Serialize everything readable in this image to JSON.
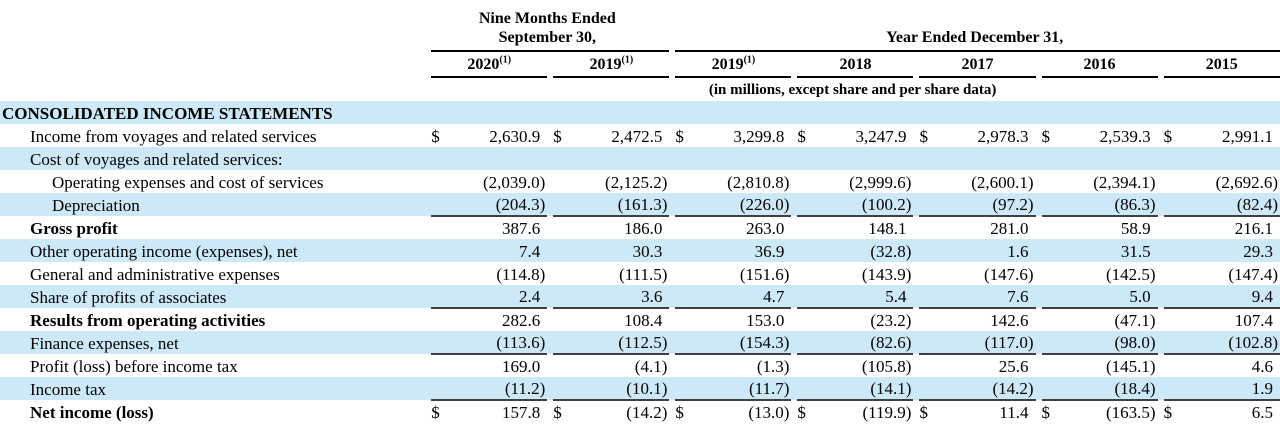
{
  "currency_symbol": "$",
  "colors": {
    "row_stripe": "#cde9f7"
  },
  "header": {
    "nine_months_line1": "Nine Months Ended",
    "nine_months_line2": "September 30,",
    "year_ended": "Year Ended December 31,",
    "units_note": "(in millions, except share and per share data)",
    "columns": [
      {
        "label": "2020",
        "sup": "(1)"
      },
      {
        "label": "2019",
        "sup": "(1)"
      },
      {
        "label": "2019",
        "sup": "(1)"
      },
      {
        "label": "2018",
        "sup": ""
      },
      {
        "label": "2017",
        "sup": ""
      },
      {
        "label": "2016",
        "sup": ""
      },
      {
        "label": "2015",
        "sup": ""
      }
    ]
  },
  "section_title": "CONSOLIDATED INCOME STATEMENTS",
  "rows": [
    {
      "label": "Income from voyages and related services",
      "indent": 1,
      "bold": false,
      "shade": false,
      "rule": false,
      "dollar": true,
      "values": [
        "2,630.9",
        "2,472.5",
        "3,299.8",
        "3,247.9",
        "2,978.3",
        "2,539.3",
        "2,991.1"
      ]
    },
    {
      "label": "Cost of voyages and related services:",
      "indent": 1,
      "bold": false,
      "shade": true,
      "rule": false,
      "dollar": false,
      "values": [
        "",
        "",
        "",
        "",
        "",
        "",
        ""
      ]
    },
    {
      "label": "Operating expenses and cost of services",
      "indent": 2,
      "bold": false,
      "shade": false,
      "rule": false,
      "dollar": false,
      "values": [
        "(2,039.0)",
        "(2,125.2)",
        "(2,810.8)",
        "(2,999.6)",
        "(2,600.1)",
        "(2,394.1)",
        "(2,692.6)"
      ]
    },
    {
      "label": "Depreciation",
      "indent": 2,
      "bold": false,
      "shade": true,
      "rule": true,
      "dollar": false,
      "values": [
        "(204.3)",
        "(161.3)",
        "(226.0)",
        "(100.2)",
        "(97.2)",
        "(86.3)",
        "(82.4)"
      ]
    },
    {
      "label": "Gross profit",
      "indent": 1,
      "bold": true,
      "shade": false,
      "rule": false,
      "dollar": false,
      "values": [
        "387.6",
        "186.0",
        "263.0",
        "148.1",
        "281.0",
        "58.9",
        "216.1"
      ]
    },
    {
      "label": "Other operating income (expenses), net",
      "indent": 1,
      "bold": false,
      "shade": true,
      "rule": false,
      "dollar": false,
      "values": [
        "7.4",
        "30.3",
        "36.9",
        "(32.8)",
        "1.6",
        "31.5",
        "29.3"
      ]
    },
    {
      "label": "General and administrative expenses",
      "indent": 1,
      "bold": false,
      "shade": false,
      "rule": false,
      "dollar": false,
      "values": [
        "(114.8)",
        "(111.5)",
        "(151.6)",
        "(143.9)",
        "(147.6)",
        "(142.5)",
        "(147.4)"
      ]
    },
    {
      "label": "Share of profits of associates",
      "indent": 1,
      "bold": false,
      "shade": true,
      "rule": true,
      "dollar": false,
      "values": [
        "2.4",
        "3.6",
        "4.7",
        "5.4",
        "7.6",
        "5.0",
        "9.4"
      ]
    },
    {
      "label": "Results from operating activities",
      "indent": 1,
      "bold": true,
      "shade": false,
      "rule": false,
      "dollar": false,
      "values": [
        "282.6",
        "108.4",
        "153.0",
        "(23.2)",
        "142.6",
        "(47.1)",
        "107.4"
      ]
    },
    {
      "label": "Finance expenses, net",
      "indent": 1,
      "bold": false,
      "shade": true,
      "rule": true,
      "dollar": false,
      "values": [
        "(113.6)",
        "(112.5)",
        "(154.3)",
        "(82.6)",
        "(117.0)",
        "(98.0)",
        "(102.8)"
      ]
    },
    {
      "label": "Profit (loss) before income tax",
      "indent": 1,
      "bold": false,
      "shade": false,
      "rule": false,
      "dollar": false,
      "values": [
        "169.0",
        "(4.1)",
        "(1.3)",
        "(105.8)",
        "25.6",
        "(145.1)",
        "4.6"
      ]
    },
    {
      "label": "Income tax",
      "indent": 1,
      "bold": false,
      "shade": true,
      "rule": true,
      "dollar": false,
      "values": [
        "(11.2)",
        "(10.1)",
        "(11.7)",
        "(14.1)",
        "(14.2)",
        "(18.4)",
        "1.9"
      ]
    },
    {
      "label": "Net income (loss)",
      "indent": 1,
      "bold": true,
      "shade": false,
      "rule": false,
      "dollar": true,
      "values": [
        "157.8",
        "(14.2)",
        "(13.0)",
        "(119.9)",
        "11.4",
        "(163.5)",
        "6.5"
      ]
    }
  ]
}
